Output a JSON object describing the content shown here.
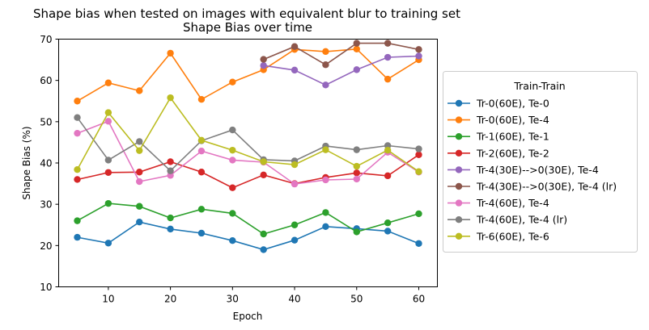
{
  "figure": {
    "suptitle": "Shape bias when tested on images with equivalent blur to training set"
  },
  "chart_data": {
    "type": "line",
    "title": "Shape Bias over time",
    "xlabel": "Epoch",
    "ylabel": "Shape Bias (%)",
    "xlim": [
      2,
      63
    ],
    "ylim": [
      10,
      70
    ],
    "xticks": [
      10,
      20,
      30,
      40,
      50,
      60
    ],
    "yticks": [
      10,
      20,
      30,
      40,
      50,
      60,
      70
    ],
    "grid": false,
    "legend": {
      "title": "Train-Train",
      "placement": "outside-right"
    },
    "series": [
      {
        "name": "Tr-0(60E), Te-0",
        "color": "#1f77b4",
        "x": [
          5,
          10,
          15,
          20,
          25,
          30,
          35,
          40,
          45,
          50,
          55,
          60
        ],
        "y": [
          22.0,
          20.6,
          25.7,
          24.0,
          23.0,
          21.2,
          19.0,
          21.3,
          24.6,
          24.1,
          23.5,
          20.5
        ]
      },
      {
        "name": "Tr-0(60E), Te-4",
        "color": "#ff7f0e",
        "x": [
          5,
          10,
          15,
          20,
          25,
          30,
          35,
          40,
          45,
          50,
          55,
          60
        ],
        "y": [
          55.0,
          59.4,
          57.5,
          66.6,
          55.4,
          59.6,
          62.6,
          67.5,
          67.0,
          67.6,
          60.3,
          65.0
        ]
      },
      {
        "name": "Tr-1(60E), Te-1",
        "color": "#2ca02c",
        "x": [
          5,
          10,
          15,
          20,
          25,
          30,
          35,
          40,
          45,
          50,
          55,
          60
        ],
        "y": [
          26.0,
          30.2,
          29.5,
          26.7,
          28.8,
          27.8,
          22.8,
          25.0,
          28.0,
          23.3,
          25.5,
          27.7
        ]
      },
      {
        "name": "Tr-2(60E), Te-2",
        "color": "#d62728",
        "x": [
          5,
          10,
          15,
          20,
          25,
          30,
          35,
          40,
          45,
          50,
          55,
          60
        ],
        "y": [
          36.0,
          37.7,
          37.8,
          40.3,
          37.8,
          34.0,
          37.1,
          35.0,
          36.5,
          37.6,
          36.9,
          42.0
        ]
      },
      {
        "name": "Tr-4(30E)-->0(30E), Te-4",
        "color": "#9467bd",
        "x": [
          35,
          40,
          45,
          50,
          55,
          60
        ],
        "y": [
          63.6,
          62.5,
          58.9,
          62.6,
          65.6,
          65.9
        ]
      },
      {
        "name": "Tr-4(30E)-->0(30E), Te-4 (lr)",
        "color": "#8c564b",
        "x": [
          35,
          40,
          45,
          50,
          55,
          60
        ],
        "y": [
          65.1,
          68.2,
          63.8,
          69.0,
          69.0,
          67.5
        ]
      },
      {
        "name": "Tr-4(60E), Te-4",
        "color": "#e377c2",
        "x": [
          5,
          10,
          15,
          20,
          25,
          30,
          35,
          40,
          45,
          50,
          55,
          60
        ],
        "y": [
          47.2,
          50.1,
          35.5,
          37.0,
          42.9,
          40.7,
          40.2,
          34.9,
          35.9,
          36.1,
          42.6,
          37.8
        ]
      },
      {
        "name": "Tr-4(60E), Te-4 (lr)",
        "color": "#7f7f7f",
        "x": [
          5,
          10,
          15,
          20,
          25,
          30,
          35,
          40,
          45,
          50,
          55,
          60
        ],
        "y": [
          51.0,
          40.7,
          45.2,
          38.1,
          45.4,
          48.0,
          40.8,
          40.5,
          44.1,
          43.2,
          44.2,
          43.4
        ]
      },
      {
        "name": "Tr-6(60E), Te-6",
        "color": "#bcbd22",
        "x": [
          5,
          10,
          15,
          20,
          25,
          30,
          35,
          40,
          45,
          50,
          55,
          60
        ],
        "y": [
          38.4,
          52.2,
          43.0,
          55.8,
          45.5,
          43.1,
          40.3,
          39.6,
          43.2,
          39.2,
          43.1,
          37.9
        ]
      }
    ]
  }
}
